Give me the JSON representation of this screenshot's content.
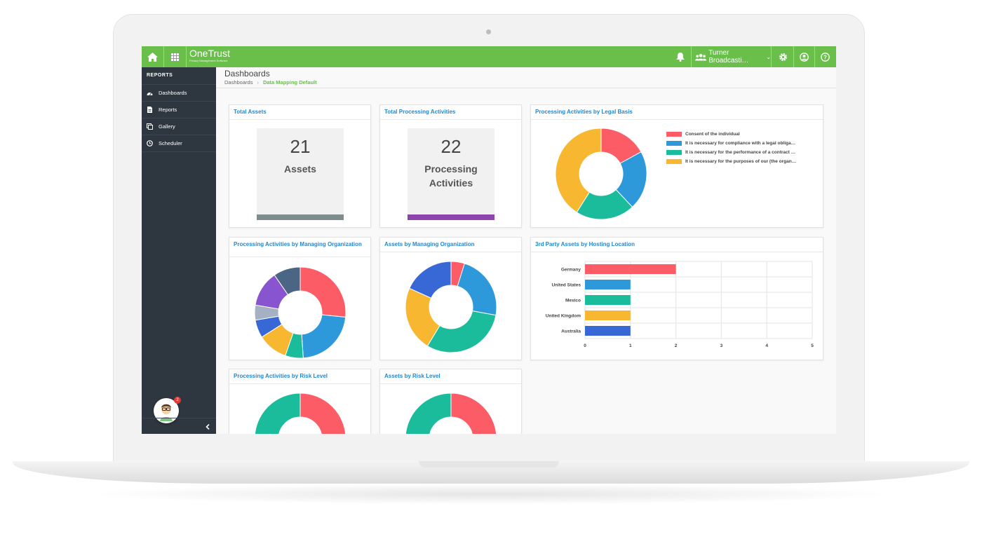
{
  "app": {
    "brand_name": "OneTrust",
    "brand_sub": "Privacy Management Software",
    "org_name": "Turner Broadcasti…",
    "accent": "#6abf4b"
  },
  "topbar_icons": [
    "home-icon",
    "apps-grid-icon",
    "bell-icon",
    "users-icon",
    "gear-icon",
    "user-circle-icon",
    "help-icon"
  ],
  "sidebar": {
    "heading": "REPORTS",
    "items": [
      {
        "label": "Dashboards",
        "icon": "dashboard-icon"
      },
      {
        "label": "Reports",
        "icon": "document-icon"
      },
      {
        "label": "Gallery",
        "icon": "gallery-icon"
      },
      {
        "label": "Scheduler",
        "icon": "clock-icon"
      }
    ],
    "notification_count": "2"
  },
  "header": {
    "title": "Dashboards",
    "breadcrumb_root": "Dashboards",
    "breadcrumb_current": "Data Mapping Default"
  },
  "cards": {
    "total_assets": {
      "title": "Total Assets",
      "value": "21",
      "label": "Assets",
      "bar_color": "#7f8c8d"
    },
    "total_processing": {
      "title": "Total Processing Activities",
      "value": "22",
      "label_line1": "Processing",
      "label_line2": "Activities",
      "bar_color": "#8e44ad"
    },
    "legal_basis": {
      "title": "Processing Activities by Legal Basis"
    },
    "pa_managing_org": {
      "title": "Processing Activities by Managing Organization"
    },
    "assets_managing_org": {
      "title": "Assets by Managing Organization"
    },
    "hosting_location": {
      "title": "3rd Party Assets by Hosting Location"
    },
    "pa_risk": {
      "title": "Processing Activities by Risk Level"
    },
    "assets_risk": {
      "title": "Assets by Risk Level"
    }
  },
  "chart_data": [
    {
      "type": "pie",
      "title": "Processing Activities by Legal Basis",
      "labels": [
        "Consent of the individual",
        "It is necessary for compliance with a legal obliga…",
        "It is necessary for the performance of a contract …",
        "It is necessary for the purposes of our (the organ…"
      ],
      "values": [
        17,
        21,
        21,
        41
      ],
      "colors": [
        "#fc5c65",
        "#2d98da",
        "#1abc9c",
        "#f7b731"
      ]
    },
    {
      "type": "pie",
      "title": "Processing Activities by Managing Organization",
      "values": [
        25,
        21,
        6,
        10,
        6,
        5,
        12,
        9
      ],
      "colors": [
        "#fc5c65",
        "#2d98da",
        "#1abc9c",
        "#f7b731",
        "#3867d6",
        "#a5b1c2",
        "#8854d0",
        "#4b6584"
      ]
    },
    {
      "type": "pie",
      "title": "Assets by Managing Organization",
      "values": [
        5,
        24,
        32,
        24,
        19
      ],
      "colors": [
        "#fc5c65",
        "#2d98da",
        "#1abc9c",
        "#f7b731",
        "#3867d6"
      ]
    },
    {
      "type": "bar",
      "orientation": "horizontal",
      "title": "3rd Party Assets by Hosting Location",
      "categories": [
        "Germany",
        "United States",
        "Mexico",
        "United Kingdom",
        "Australia"
      ],
      "values": [
        2,
        1,
        1,
        1,
        1
      ],
      "colors": [
        "#fc5c65",
        "#2d98da",
        "#1abc9c",
        "#f7b731",
        "#3867d6"
      ],
      "xlim": [
        0,
        5
      ],
      "xticks": [
        "0",
        "1",
        "2",
        "3",
        "4",
        "5"
      ],
      "grid": true
    },
    {
      "type": "pie",
      "title": "Processing Activities by Risk Level",
      "values": [
        50,
        50
      ],
      "colors": [
        "#fc5c65",
        "#1abc9c"
      ]
    },
    {
      "type": "pie",
      "title": "Assets by Risk Level",
      "values": [
        50,
        50
      ],
      "colors": [
        "#fc5c65",
        "#1abc9c"
      ]
    }
  ]
}
